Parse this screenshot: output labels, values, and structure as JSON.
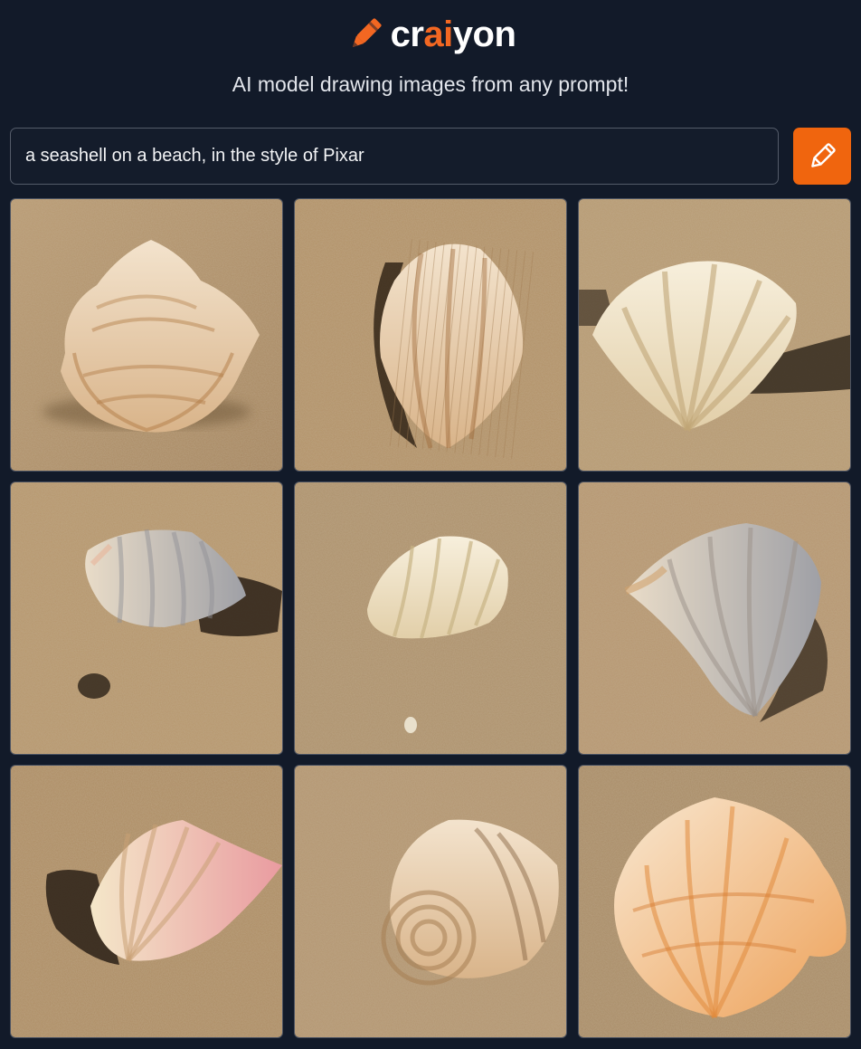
{
  "app": {
    "logo_prefix": "cr",
    "logo_accent": "ai",
    "logo_suffix": "yon",
    "tagline": "AI model drawing images from any prompt!",
    "accent_color": "#f26722"
  },
  "prompt": {
    "value": "a seashell on a beach, in the style of Pixar",
    "button_icon": "pencil-icon"
  },
  "results": {
    "images": [
      {
        "alt": "seashell image 1"
      },
      {
        "alt": "seashell image 2"
      },
      {
        "alt": "seashell image 3"
      },
      {
        "alt": "seashell image 4"
      },
      {
        "alt": "seashell image 5"
      },
      {
        "alt": "seashell image 6"
      },
      {
        "alt": "seashell image 7"
      },
      {
        "alt": "seashell image 8"
      },
      {
        "alt": "seashell image 9"
      }
    ]
  }
}
